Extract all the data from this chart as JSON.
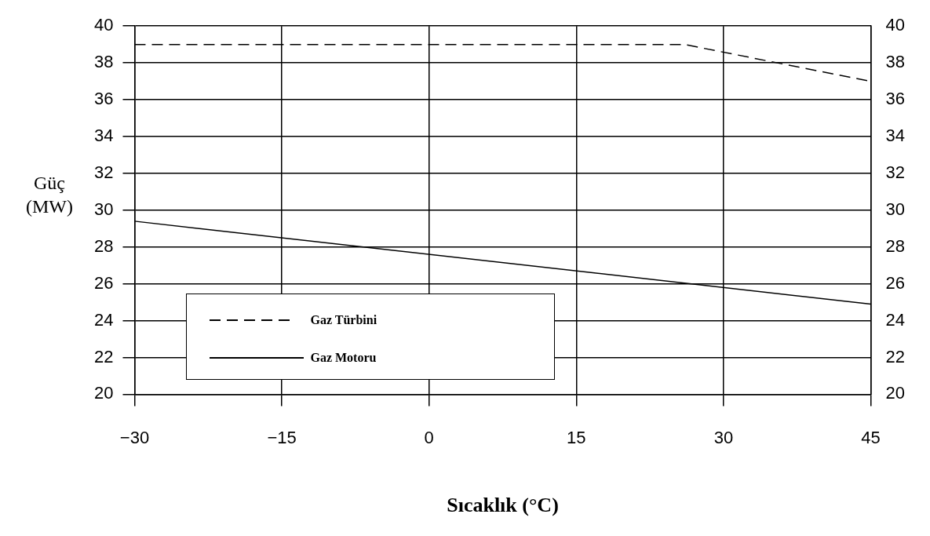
{
  "chart_data": {
    "type": "line",
    "xlabel": "Sıcaklık (°C)",
    "ylabel": "Güç (MW)",
    "xlim": [
      -30,
      45
    ],
    "xticks": [
      -30,
      -15,
      0,
      15,
      30,
      45
    ],
    "ylim": [
      20,
      40
    ],
    "yticks": [
      20,
      22,
      24,
      26,
      28,
      30,
      32,
      34,
      36,
      38,
      40
    ],
    "y2lim": [
      20,
      40
    ],
    "y2ticks": [
      20,
      22,
      24,
      26,
      28,
      30,
      32,
      34,
      36,
      38,
      40
    ],
    "grid": true,
    "legend": "bottom left",
    "marker": "none",
    "series": [
      {
        "name": "Gaz Türbini",
        "color": "#000000",
        "line_style": "dashed",
        "x": [
          -30,
          26,
          45
        ],
        "values": [
          39,
          39,
          37
        ]
      },
      {
        "name": "Gaz Motoru",
        "color": "#000000",
        "line_style": "solid",
        "x": [
          -30,
          45
        ],
        "values": [
          29.4,
          24.9
        ]
      }
    ]
  }
}
